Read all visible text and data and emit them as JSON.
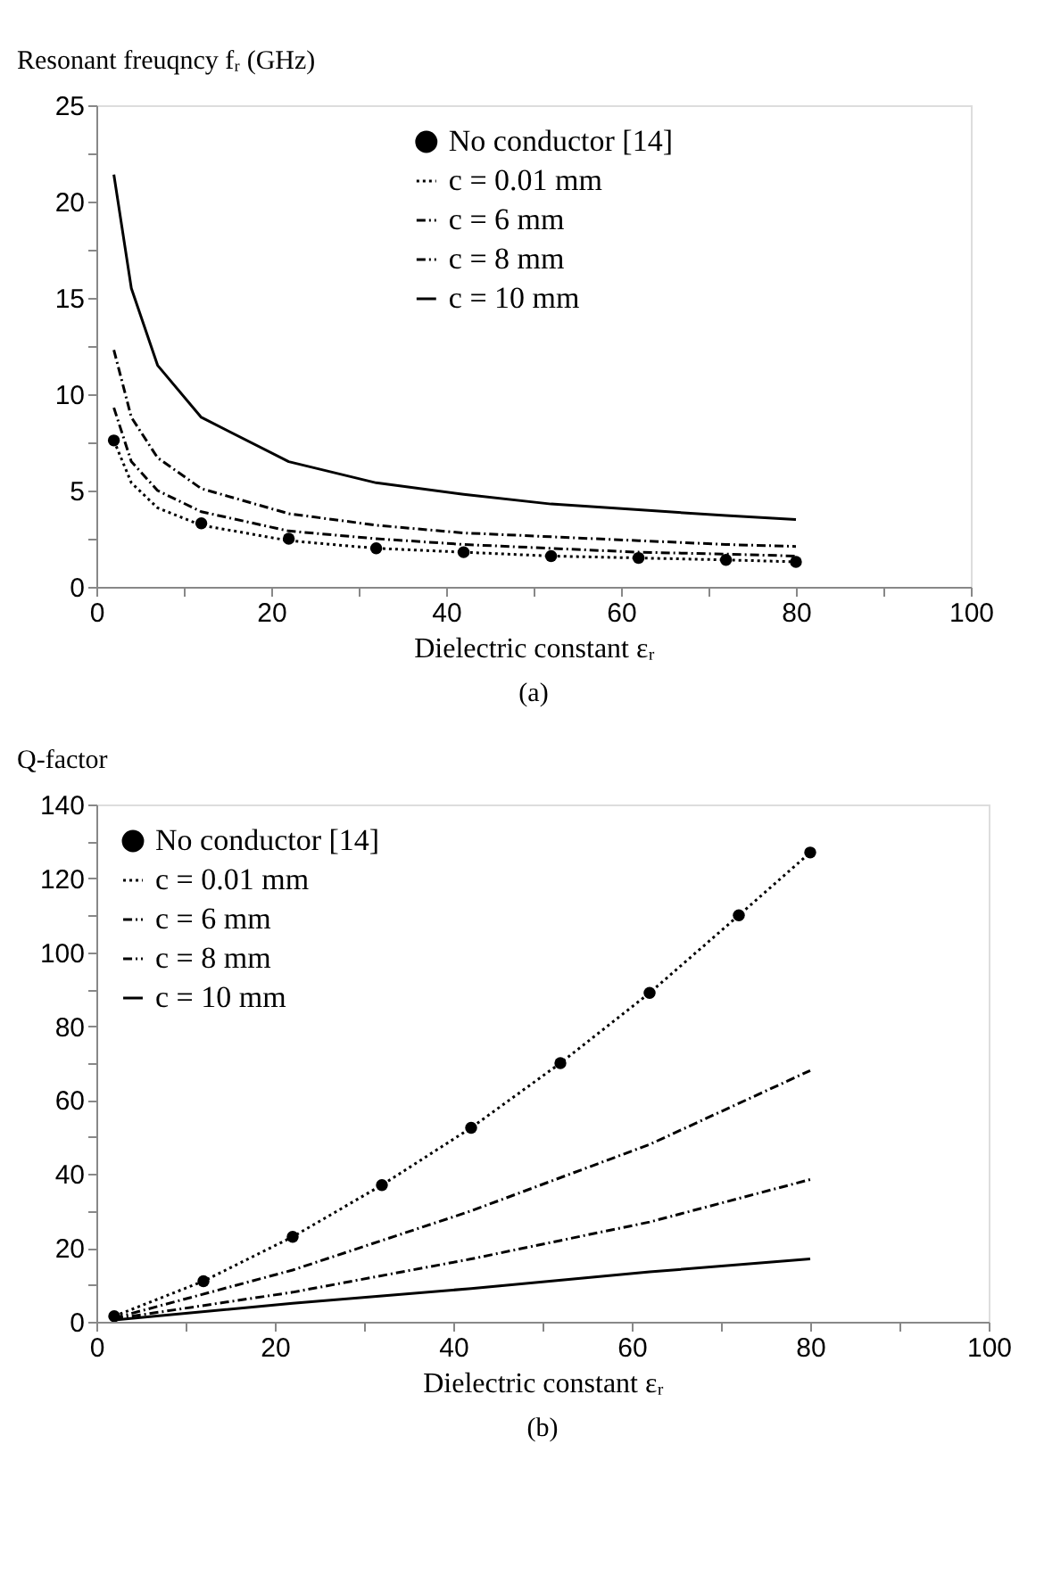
{
  "chart_data": [
    {
      "type": "line",
      "ylabel": "Resonant freuqncy fᵣ  (GHz)",
      "xlabel": "Dielectric constant  εᵣ",
      "annotations": [
        "(a)"
      ],
      "xlim": [
        0,
        100
      ],
      "xticks": [
        0,
        {
          "value": 10,
          "label": null
        },
        20,
        {
          "value": 30,
          "label": null
        },
        40,
        {
          "value": 50,
          "label": null
        },
        60,
        {
          "value": 70,
          "label": null
        },
        80,
        {
          "value": 90,
          "label": null
        },
        100
      ],
      "ylim": [
        0,
        25
      ],
      "yticks": [
        0,
        {
          "value": 2.5,
          "label": null
        },
        5,
        {
          "value": 7.5,
          "label": null
        },
        10,
        {
          "value": 12.5,
          "label": null
        },
        15,
        {
          "value": 17.5,
          "label": null
        },
        20,
        {
          "value": 22.5,
          "label": null
        },
        25
      ],
      "grid": false,
      "legend": "top",
      "series": [
        {
          "name": "No conductor [14]",
          "type": "scatter",
          "marker": "circle",
          "color": "#000000",
          "x": [
            2,
            12,
            22,
            32,
            42,
            52,
            62,
            72,
            80
          ],
          "values": [
            7.6,
            3.3,
            2.5,
            2.0,
            1.8,
            1.6,
            1.5,
            1.4,
            1.3
          ]
        },
        {
          "name": "c = 0.01 mm",
          "line_style": "dotted",
          "color": "#000000",
          "x": [
            2,
            4,
            7,
            12,
            22,
            32,
            42,
            52,
            62,
            72,
            80
          ],
          "values": [
            7.6,
            5.4,
            4.1,
            3.2,
            2.4,
            2.0,
            1.8,
            1.6,
            1.5,
            1.4,
            1.3
          ]
        },
        {
          "name": "c = 6 mm",
          "line_style": "dashed",
          "color": "#000000",
          "x": [
            2,
            4,
            7,
            12,
            22,
            32,
            42,
            52,
            62,
            72,
            80
          ],
          "values": [
            9.3,
            6.5,
            5.0,
            3.9,
            2.9,
            2.5,
            2.2,
            2.0,
            1.8,
            1.7,
            1.6
          ]
        },
        {
          "name": "c = 8 mm",
          "line_style": "dashed",
          "color": "#000000",
          "x": [
            2,
            4,
            7,
            12,
            22,
            32,
            42,
            52,
            62,
            72,
            80
          ],
          "values": [
            12.3,
            8.8,
            6.7,
            5.1,
            3.8,
            3.2,
            2.8,
            2.6,
            2.4,
            2.2,
            2.1
          ]
        },
        {
          "name": "c = 10 mm",
          "line_style": "solid",
          "color": "#000000",
          "x": [
            2,
            4,
            7,
            12,
            22,
            32,
            42,
            52,
            62,
            72,
            80
          ],
          "values": [
            21.4,
            15.5,
            11.5,
            8.8,
            6.5,
            5.4,
            4.8,
            4.3,
            4.0,
            3.7,
            3.5
          ]
        }
      ]
    },
    {
      "type": "line",
      "ylabel": "Q-factor",
      "xlabel": "Dielectric constant  εᵣ",
      "annotations": [
        "(b)"
      ],
      "xlim": [
        0,
        100
      ],
      "xticks": [
        0,
        {
          "value": 10,
          "label": null
        },
        20,
        {
          "value": 30,
          "label": null
        },
        40,
        {
          "value": 50,
          "label": null
        },
        60,
        {
          "value": 70,
          "label": null
        },
        80,
        {
          "value": 90,
          "label": null
        },
        100
      ],
      "ylim": [
        0,
        140
      ],
      "yticks": [
        0,
        {
          "value": 10,
          "label": null
        },
        20,
        {
          "value": 30,
          "label": null
        },
        40,
        {
          "value": 50,
          "label": null
        },
        60,
        {
          "value": 70,
          "label": null
        },
        80,
        {
          "value": 90,
          "label": null
        },
        100,
        {
          "value": 110,
          "label": null
        },
        120,
        {
          "value": 130,
          "label": null
        },
        140
      ],
      "grid": false,
      "legend": "top left",
      "series": [
        {
          "name": "No conductor [14]",
          "type": "scatter",
          "marker": "circle",
          "color": "#000000",
          "x": [
            2,
            12,
            22,
            32,
            42,
            52,
            62,
            72,
            80
          ],
          "values": [
            1.5,
            11,
            23,
            37,
            52.5,
            70,
            89,
            110,
            127
          ]
        },
        {
          "name": "c = 0.01 mm",
          "line_style": "dotted",
          "color": "#000000",
          "x": [
            2,
            12,
            22,
            32,
            42,
            52,
            62,
            72,
            80
          ],
          "values": [
            1.5,
            11,
            23,
            37,
            52.5,
            70,
            89,
            110,
            127
          ]
        },
        {
          "name": "c = 6 mm",
          "line_style": "dashed",
          "color": "#000000",
          "x": [
            2,
            22,
            42,
            62,
            80
          ],
          "values": [
            1,
            14,
            30,
            48,
            68
          ]
        },
        {
          "name": "c = 8 mm",
          "line_style": "dashed",
          "color": "#000000",
          "x": [
            2,
            22,
            42,
            62,
            80
          ],
          "values": [
            0.8,
            8,
            17,
            27,
            38.5
          ]
        },
        {
          "name": "c = 10 mm",
          "line_style": "solid",
          "color": "#000000",
          "x": [
            2,
            22,
            42,
            62,
            80
          ],
          "values": [
            0.5,
            5,
            9,
            13.5,
            17
          ]
        }
      ]
    }
  ]
}
